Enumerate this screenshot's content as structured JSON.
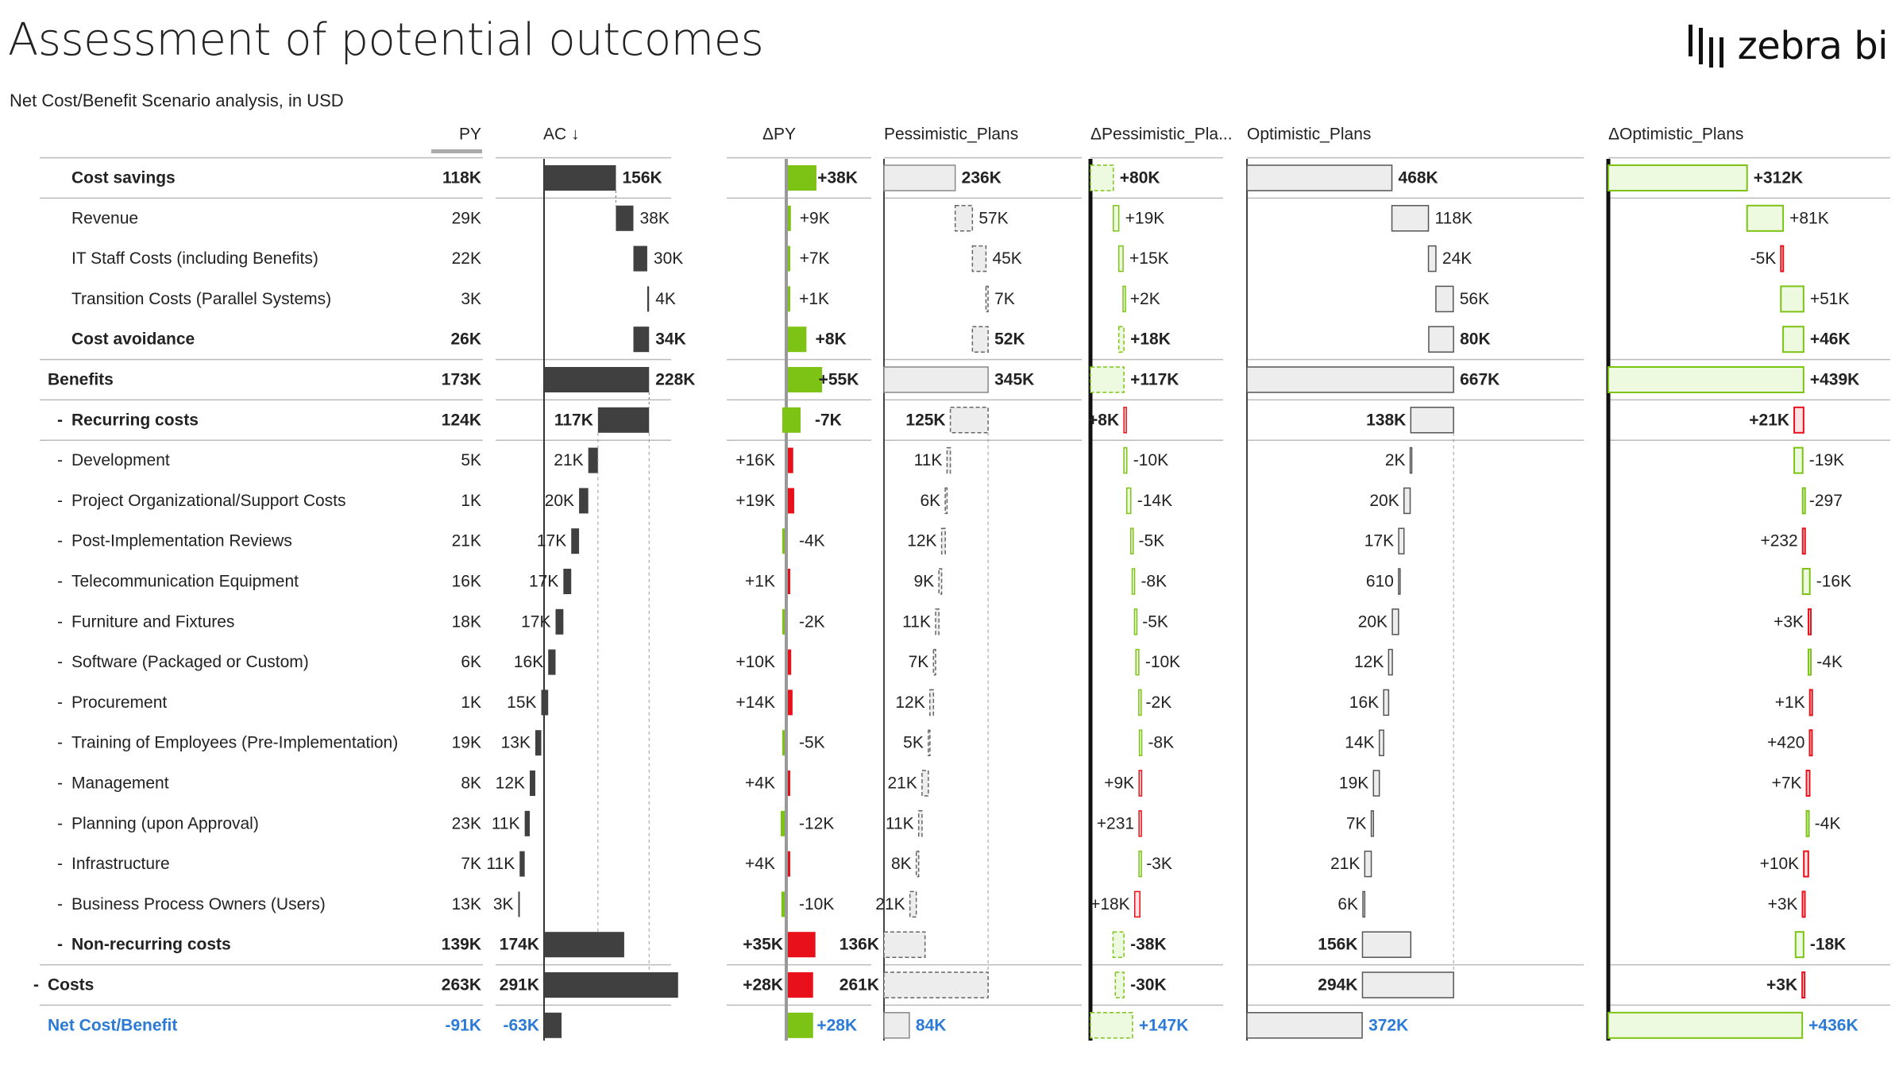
{
  "header": {
    "title": "Assessment of potential outcomes",
    "subtitle": "Net Cost/Benefit Scenario analysis, in USD",
    "logo_text": "zebra bi"
  },
  "colors": {
    "ac_bar": "#404040",
    "positive": "#7dc316",
    "negative": "#e8111b",
    "plan_fill": "#ededed",
    "optimistic_delta_fill": "#eefadf",
    "total_text": "#2b7bd6"
  },
  "chart_data": {
    "type": "table",
    "columns": [
      "PY",
      "AC ↓",
      "ΔPY",
      "Pessimistic_Plans",
      "ΔPessimistic_Pla...",
      "Optimistic_Plans",
      "ΔOptimistic_Plans"
    ],
    "rows": [
      {
        "label": "Cost savings",
        "prefix": "",
        "indent": 1,
        "bold": true,
        "kind": "benefit_sub",
        "py": "118K",
        "ac": "156K",
        "dpy": "+38K",
        "pess": "236K",
        "dpess": "+80K",
        "opt": "468K",
        "dopt": "+312K",
        "v": [
          118,
          156,
          38,
          236,
          80,
          468,
          312
        ]
      },
      {
        "label": "Revenue",
        "prefix": "",
        "indent": 1,
        "bold": false,
        "kind": "benefit",
        "py": "29K",
        "ac": "38K",
        "dpy": "+9K",
        "pess": "57K",
        "dpess": "+19K",
        "opt": "118K",
        "dopt": "+81K",
        "v": [
          29,
          38,
          9,
          57,
          19,
          118,
          81
        ]
      },
      {
        "label": "IT Staff Costs (including Benefits)",
        "prefix": "",
        "indent": 1,
        "bold": false,
        "kind": "benefit",
        "py": "22K",
        "ac": "30K",
        "dpy": "+7K",
        "pess": "45K",
        "dpess": "+15K",
        "opt": "24K",
        "dopt": "-5K",
        "v": [
          22,
          30,
          7,
          45,
          15,
          24,
          -5
        ]
      },
      {
        "label": "Transition Costs (Parallel Systems)",
        "prefix": "",
        "indent": 1,
        "bold": false,
        "kind": "benefit",
        "py": "3K",
        "ac": "4K",
        "dpy": "+1K",
        "pess": "7K",
        "dpess": "+2K",
        "opt": "56K",
        "dopt": "+51K",
        "v": [
          3,
          4,
          1,
          7,
          2,
          56,
          51
        ]
      },
      {
        "label": "Cost avoidance",
        "prefix": "",
        "indent": 1,
        "bold": true,
        "kind": "benefit_sub",
        "py": "26K",
        "ac": "34K",
        "dpy": "+8K",
        "pess": "52K",
        "dpess": "+18K",
        "opt": "80K",
        "dopt": "+46K",
        "v": [
          26,
          34,
          8,
          52,
          18,
          80,
          46
        ]
      },
      {
        "label": "Benefits",
        "prefix": "",
        "indent": 0,
        "bold": true,
        "kind": "total",
        "py": "173K",
        "ac": "228K",
        "dpy": "+55K",
        "pess": "345K",
        "dpess": "+117K",
        "opt": "667K",
        "dopt": "+439K",
        "v": [
          173,
          228,
          55,
          345,
          117,
          667,
          439
        ]
      },
      {
        "label": "Recurring costs",
        "prefix": "-",
        "indent": 1,
        "bold": true,
        "kind": "cost_sub",
        "py": "124K",
        "ac": "117K",
        "dpy": "-7K",
        "pess": "125K",
        "dpess": "+8K",
        "opt": "138K",
        "dopt": "+21K",
        "v": [
          124,
          117,
          -7,
          125,
          8,
          138,
          21
        ]
      },
      {
        "label": "Development",
        "prefix": "-",
        "indent": 1,
        "bold": false,
        "kind": "cost",
        "py": "5K",
        "ac": "21K",
        "dpy": "+16K",
        "pess": "11K",
        "dpess": "-10K",
        "opt": "2K",
        "dopt": "-19K",
        "v": [
          5,
          21,
          16,
          11,
          -10,
          2,
          -19
        ]
      },
      {
        "label": "Project Organizational/Support Costs",
        "prefix": "-",
        "indent": 1,
        "bold": false,
        "kind": "cost",
        "py": "1K",
        "ac": "20K",
        "dpy": "+19K",
        "pess": "6K",
        "dpess": "-14K",
        "opt": "20K",
        "dopt": "-297",
        "v": [
          1,
          20,
          19,
          6,
          -14,
          20,
          -0.3
        ]
      },
      {
        "label": "Post-Implementation Reviews",
        "prefix": "-",
        "indent": 1,
        "bold": false,
        "kind": "cost",
        "py": "21K",
        "ac": "17K",
        "dpy": "-4K",
        "pess": "12K",
        "dpess": "-5K",
        "opt": "17K",
        "dopt": "+232",
        "v": [
          21,
          17,
          -4,
          12,
          -5,
          17,
          0.23
        ]
      },
      {
        "label": "Telecommunication Equipment",
        "prefix": "-",
        "indent": 1,
        "bold": false,
        "kind": "cost",
        "py": "16K",
        "ac": "17K",
        "dpy": "+1K",
        "pess": "9K",
        "dpess": "-8K",
        "opt": "610",
        "dopt": "-16K",
        "v": [
          16,
          17,
          1,
          9,
          -8,
          0.6,
          -16
        ]
      },
      {
        "label": "Furniture and Fixtures",
        "prefix": "-",
        "indent": 1,
        "bold": false,
        "kind": "cost",
        "py": "18K",
        "ac": "17K",
        "dpy": "-2K",
        "pess": "11K",
        "dpess": "-5K",
        "opt": "20K",
        "dopt": "+3K",
        "v": [
          18,
          17,
          -2,
          11,
          -5,
          20,
          3
        ]
      },
      {
        "label": "Software (Packaged or Custom)",
        "prefix": "-",
        "indent": 1,
        "bold": false,
        "kind": "cost",
        "py": "6K",
        "ac": "16K",
        "dpy": "+10K",
        "pess": "7K",
        "dpess": "-10K",
        "opt": "12K",
        "dopt": "-4K",
        "v": [
          6,
          16,
          10,
          7,
          -10,
          12,
          -4
        ]
      },
      {
        "label": "Procurement",
        "prefix": "-",
        "indent": 1,
        "bold": false,
        "kind": "cost",
        "py": "1K",
        "ac": "15K",
        "dpy": "+14K",
        "pess": "12K",
        "dpess": "-2K",
        "opt": "16K",
        "dopt": "+1K",
        "v": [
          1,
          15,
          14,
          12,
          -2,
          16,
          1
        ]
      },
      {
        "label": "Training of Employees (Pre-Implementation)",
        "prefix": "-",
        "indent": 1,
        "bold": false,
        "kind": "cost",
        "py": "19K",
        "ac": "13K",
        "dpy": "-5K",
        "pess": "5K",
        "dpess": "-8K",
        "opt": "14K",
        "dopt": "+420",
        "v": [
          19,
          13,
          -5,
          5,
          -8,
          14,
          0.42
        ]
      },
      {
        "label": "Management",
        "prefix": "-",
        "indent": 1,
        "bold": false,
        "kind": "cost",
        "py": "8K",
        "ac": "12K",
        "dpy": "+4K",
        "pess": "21K",
        "dpess": "+9K",
        "opt": "19K",
        "dopt": "+7K",
        "v": [
          8,
          12,
          4,
          21,
          9,
          19,
          7
        ]
      },
      {
        "label": "Planning (upon Approval)",
        "prefix": "-",
        "indent": 1,
        "bold": false,
        "kind": "cost",
        "py": "23K",
        "ac": "11K",
        "dpy": "-12K",
        "pess": "11K",
        "dpess": "+231",
        "opt": "7K",
        "dopt": "-4K",
        "v": [
          23,
          11,
          -12,
          11,
          0.23,
          7,
          -4
        ]
      },
      {
        "label": "Infrastructure",
        "prefix": "-",
        "indent": 1,
        "bold": false,
        "kind": "cost",
        "py": "7K",
        "ac": "11K",
        "dpy": "+4K",
        "pess": "8K",
        "dpess": "-3K",
        "opt": "21K",
        "dopt": "+10K",
        "v": [
          7,
          11,
          4,
          8,
          -3,
          21,
          10
        ]
      },
      {
        "label": "Business Process Owners (Users)",
        "prefix": "-",
        "indent": 1,
        "bold": false,
        "kind": "cost",
        "py": "13K",
        "ac": "3K",
        "dpy": "-10K",
        "pess": "21K",
        "dpess": "+18K",
        "opt": "6K",
        "dopt": "+3K",
        "v": [
          13,
          3,
          -10,
          21,
          18,
          6,
          3
        ]
      },
      {
        "label": "Non-recurring costs",
        "prefix": "-",
        "indent": 1,
        "bold": true,
        "kind": "cost_sub",
        "py": "139K",
        "ac": "174K",
        "dpy": "+35K",
        "pess": "136K",
        "dpess": "-38K",
        "opt": "156K",
        "dopt": "-18K",
        "v": [
          139,
          174,
          35,
          136,
          -38,
          156,
          -18
        ]
      },
      {
        "label": "Costs",
        "prefix": "-",
        "indent": 0,
        "bold": true,
        "kind": "cost_total",
        "py": "263K",
        "ac": "291K",
        "dpy": "+28K",
        "pess": "261K",
        "dpess": "-30K",
        "opt": "294K",
        "dopt": "+3K",
        "v": [
          263,
          291,
          28,
          261,
          -30,
          294,
          3
        ]
      },
      {
        "label": "Net Cost/Benefit",
        "prefix": "",
        "indent": 0,
        "bold": true,
        "kind": "net",
        "py": "-91K",
        "ac": "-63K",
        "dpy": "+28K",
        "pess": "84K",
        "dpess": "+147K",
        "opt": "372K",
        "dopt": "+436K",
        "v": [
          -91,
          -63,
          28,
          84,
          147,
          372,
          436
        ]
      }
    ]
  }
}
